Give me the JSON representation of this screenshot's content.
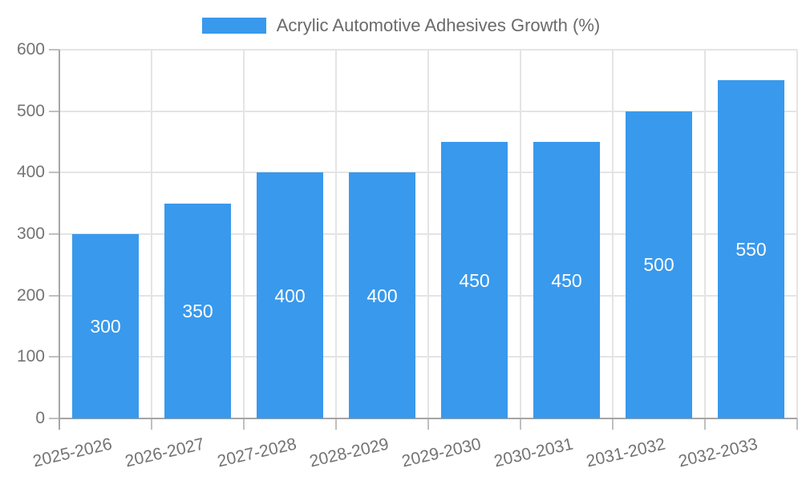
{
  "legend": {
    "label": "Acrylic Automotive Adhesives Growth (%)"
  },
  "colors": {
    "bar": "#3999EC",
    "grid": "#E4E4E4",
    "axis": "#A5A5A5",
    "tick": "#C0C0C0",
    "axis_text": "#737373",
    "legend_text": "#6A6A6A",
    "value_text": "#FFFFFF",
    "background": "#FFFFFF"
  },
  "chart_data": {
    "type": "bar",
    "title": "Acrylic Automotive Adhesives Growth (%)",
    "categories": [
      "2025-2026",
      "2026-2027",
      "2027-2028",
      "2028-2029",
      "2029-2030",
      "2030-2031",
      "2031-2032",
      "2032-2033"
    ],
    "series": [
      {
        "name": "Acrylic Automotive Adhesives Growth (%)",
        "values": [
          300,
          350,
          400,
          400,
          450,
          450,
          500,
          550
        ]
      }
    ],
    "xlabel": "",
    "ylabel": "",
    "ylim": [
      0,
      600
    ],
    "yticks": [
      0,
      100,
      200,
      300,
      400,
      500,
      600
    ],
    "grid": true,
    "legend_position": "top-center",
    "value_label_position": "inside-center",
    "x_tick_rotation_deg": -13
  }
}
